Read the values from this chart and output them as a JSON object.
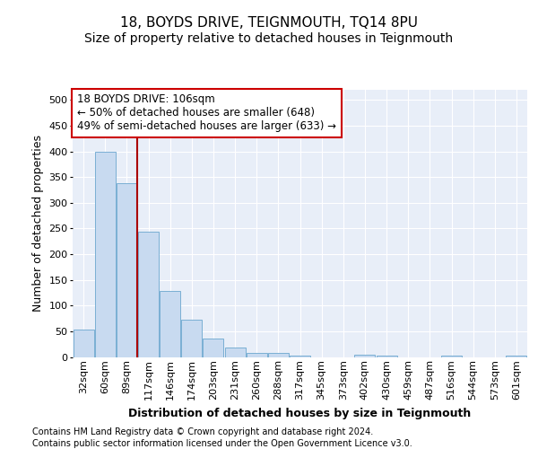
{
  "title1": "18, BOYDS DRIVE, TEIGNMOUTH, TQ14 8PU",
  "title2": "Size of property relative to detached houses in Teignmouth",
  "xlabel": "Distribution of detached houses by size in Teignmouth",
  "ylabel": "Number of detached properties",
  "bins": [
    "32sqm",
    "60sqm",
    "89sqm",
    "117sqm",
    "146sqm",
    "174sqm",
    "203sqm",
    "231sqm",
    "260sqm",
    "288sqm",
    "317sqm",
    "345sqm",
    "373sqm",
    "402sqm",
    "430sqm",
    "459sqm",
    "487sqm",
    "516sqm",
    "544sqm",
    "573sqm",
    "601sqm"
  ],
  "values": [
    53,
    400,
    338,
    243,
    128,
    72,
    35,
    18,
    7,
    7,
    3,
    0,
    0,
    5,
    3,
    0,
    0,
    3,
    0,
    0,
    3
  ],
  "bar_color": "#c8daf0",
  "bar_edge_color": "#7aafd4",
  "vline_x": 2.5,
  "vline_color": "#aa0000",
  "annotation_line1": "18 BOYDS DRIVE: 106sqm",
  "annotation_line2": "← 50% of detached houses are smaller (648)",
  "annotation_line3": "49% of semi-detached houses are larger (633) →",
  "annotation_box_color": "#ffffff",
  "annotation_box_edge": "#cc0000",
  "ylim": [
    0,
    520
  ],
  "yticks": [
    0,
    50,
    100,
    150,
    200,
    250,
    300,
    350,
    400,
    450,
    500
  ],
  "footer1": "Contains HM Land Registry data © Crown copyright and database right 2024.",
  "footer2": "Contains public sector information licensed under the Open Government Licence v3.0.",
  "bg_color": "#ffffff",
  "plot_bg_color": "#e8eef8",
  "grid_color": "#ffffff",
  "title1_fontsize": 11,
  "title2_fontsize": 10,
  "tick_fontsize": 8,
  "ylabel_fontsize": 9,
  "xlabel_fontsize": 9,
  "footer_fontsize": 7,
  "annot_fontsize": 8.5
}
